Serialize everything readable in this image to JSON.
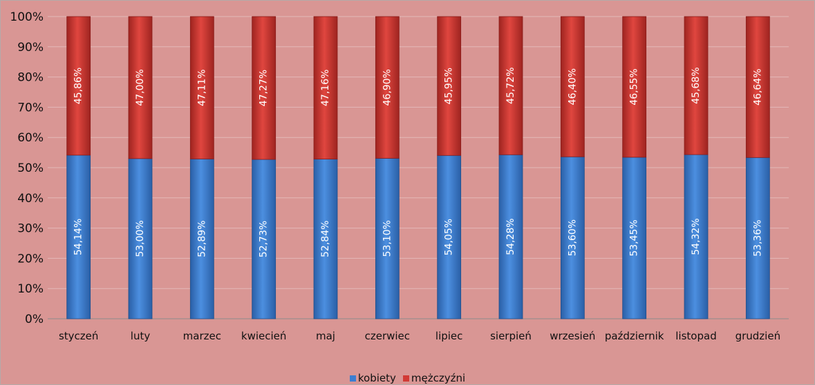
{
  "chart_data": {
    "type": "bar",
    "stacked": "percent",
    "categories": [
      "styczeń",
      "luty",
      "marzec",
      "kwiecień",
      "maj",
      "czerwiec",
      "lipiec",
      "sierpień",
      "wrzesień",
      "październik",
      "listopad",
      "grudzień"
    ],
    "series": [
      {
        "name": "kobiety",
        "color": "#3c7ed1",
        "values": [
          54.14,
          53.0,
          52.89,
          52.73,
          52.84,
          53.1,
          54.05,
          54.28,
          53.6,
          53.45,
          54.32,
          53.36
        ],
        "labels": [
          "54,14%",
          "53,00%",
          "52,89%",
          "52,73%",
          "52,84%",
          "53,10%",
          "54,05%",
          "54,28%",
          "53,60%",
          "53,45%",
          "54,32%",
          "53,36%"
        ]
      },
      {
        "name": "mężczyźni",
        "color": "#d23a35",
        "values": [
          45.86,
          47.0,
          47.11,
          47.27,
          47.16,
          46.9,
          45.95,
          45.72,
          46.4,
          46.55,
          45.68,
          46.64
        ],
        "labels": [
          "45,86%",
          "47,00%",
          "47,11%",
          "47,27%",
          "47,16%",
          "46,90%",
          "45,95%",
          "45,72%",
          "46,40%",
          "46,55%",
          "45,68%",
          "46,64%"
        ]
      }
    ],
    "yticks": [
      "0%",
      "10%",
      "20%",
      "30%",
      "40%",
      "50%",
      "60%",
      "70%",
      "80%",
      "90%",
      "100%"
    ],
    "ylim": [
      0,
      100
    ],
    "grid": true,
    "legend_position": "bottom"
  }
}
